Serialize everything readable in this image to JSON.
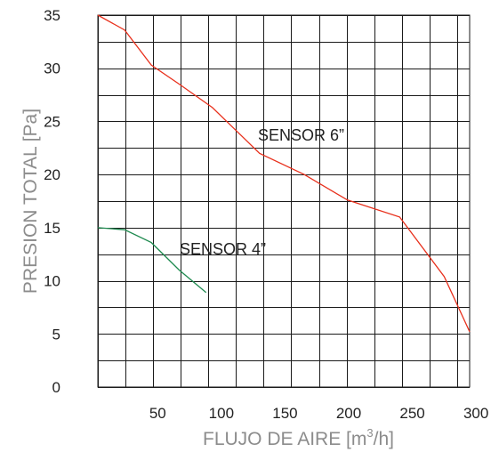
{
  "chart_data": {
    "type": "line",
    "title": "",
    "xlabel_main": "FLUJO DE AIRE [m",
    "xlabel_sup": "3",
    "xlabel_end": "/h]",
    "ylabel": "PRESION TOTAL [Pa]",
    "xlim": [
      3,
      295
    ],
    "ylim": [
      0,
      35
    ],
    "x_ticks": [
      50,
      100,
      150,
      200,
      250,
      300
    ],
    "y_ticks": [
      0,
      5,
      10,
      15,
      20,
      25,
      30,
      35
    ],
    "x_grid_step": 21.7,
    "y_grid_step": 2.5,
    "grid": true,
    "series": [
      {
        "name": "SENSOR 6”",
        "color": "#e8301c",
        "x": [
          3,
          24,
          45,
          67,
          93,
          130,
          165,
          199,
          240,
          275,
          295
        ],
        "y": [
          35,
          33.6,
          30.3,
          28.5,
          26.3,
          22,
          20,
          17.6,
          16,
          10.4,
          5.2
        ]
      },
      {
        "name": "SENSOR 4”",
        "color": "#1e8a4f",
        "x": [
          3,
          24,
          45,
          67,
          88
        ],
        "y": [
          15,
          14.8,
          13.6,
          11,
          8.9
        ]
      }
    ]
  }
}
